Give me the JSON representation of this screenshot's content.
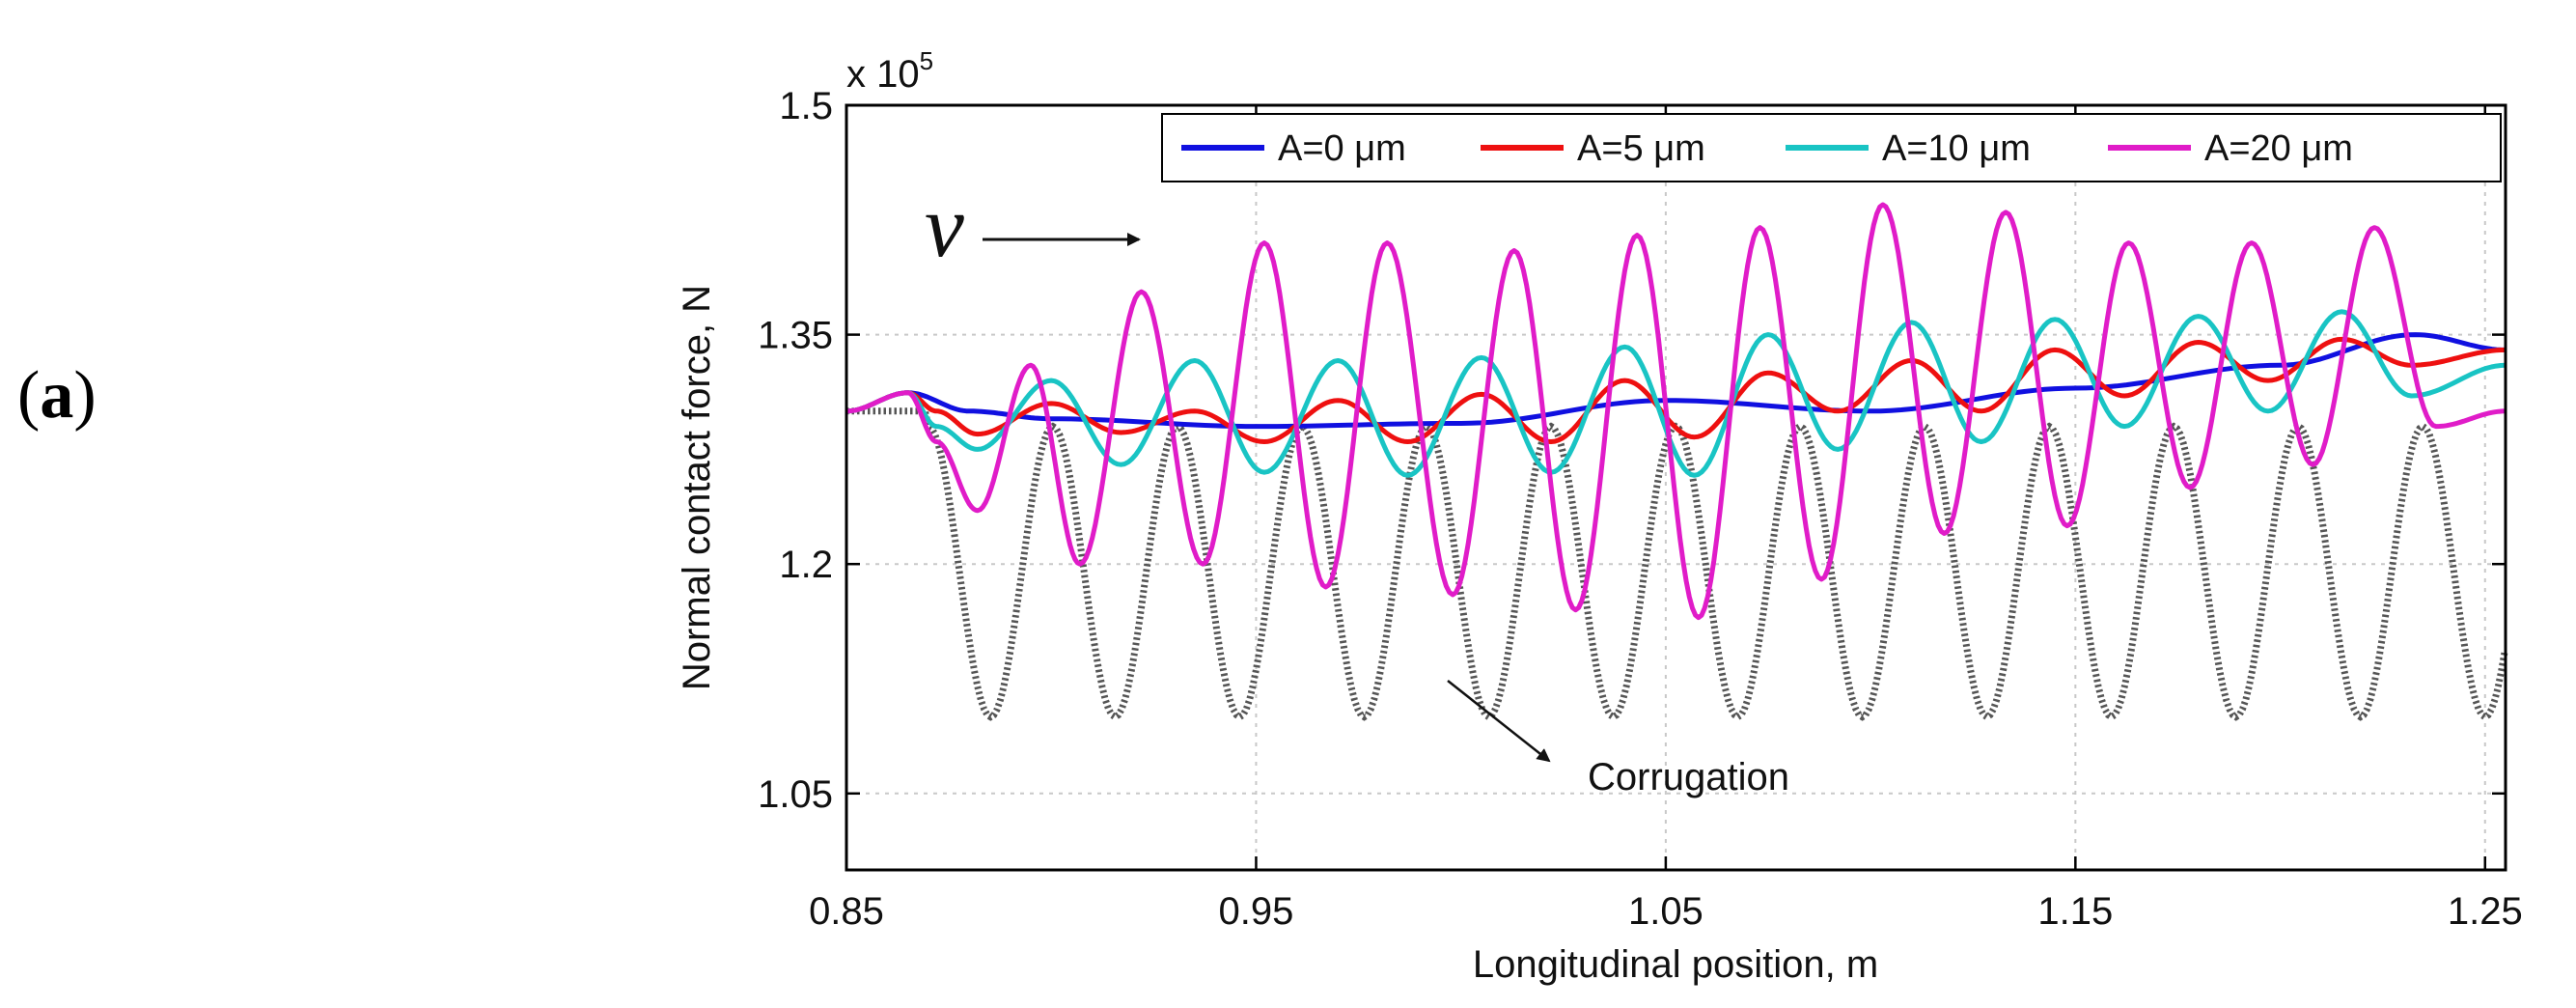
{
  "panel_label": {
    "open": "(",
    "letter": "a",
    "close": ")"
  },
  "chart_data": {
    "type": "line",
    "title": "",
    "xlabel": "Longitudinal position, m",
    "ylabel": "Normal contact force, N",
    "y_multiplier": "x 10",
    "y_exponent": "5",
    "xlim": [
      0.85,
      1.255
    ],
    "ylim": [
      1.0,
      1.5
    ],
    "xticks": [
      "0.85",
      "0.95",
      "1.05",
      "1.15",
      "1.25"
    ],
    "xtick_values": [
      0.85,
      0.95,
      1.05,
      1.15,
      1.25
    ],
    "yticks": [
      "1.05",
      "1.2",
      "1.35",
      "1.5"
    ],
    "ytick_values": [
      1.05,
      1.2,
      1.35,
      1.5
    ],
    "grid": true,
    "legend": "top-right",
    "velocity_label": "v",
    "annotation": "Corrugation",
    "series": [
      {
        "name": "A=0 μm",
        "color": "#1010e0",
        "amplitude_um": 0,
        "x": [
          0.85,
          0.865,
          0.88,
          0.9,
          0.95,
          1.0,
          1.05,
          1.1,
          1.15,
          1.2,
          1.233,
          1.255
        ],
        "values": [
          1.3,
          1.312,
          1.3,
          1.295,
          1.29,
          1.292,
          1.307,
          1.3,
          1.315,
          1.33,
          1.35,
          1.34
        ]
      },
      {
        "name": "A=5 μm",
        "color": "#ee1010",
        "amplitude_um": 5,
        "x": [
          0.85,
          0.865,
          0.872,
          0.882,
          0.9,
          0.917,
          0.935,
          0.952,
          0.97,
          0.987,
          1.005,
          1.022,
          1.04,
          1.057,
          1.075,
          1.092,
          1.11,
          1.127,
          1.145,
          1.162,
          1.18,
          1.197,
          1.215,
          1.232,
          1.255
        ],
        "values": [
          1.3,
          1.312,
          1.3,
          1.285,
          1.305,
          1.286,
          1.3,
          1.28,
          1.307,
          1.28,
          1.311,
          1.28,
          1.32,
          1.283,
          1.325,
          1.3,
          1.333,
          1.3,
          1.34,
          1.31,
          1.345,
          1.32,
          1.347,
          1.33,
          1.34
        ]
      },
      {
        "name": "A=10 μm",
        "color": "#19c4c4",
        "amplitude_um": 10,
        "x": [
          0.85,
          0.865,
          0.872,
          0.882,
          0.9,
          0.917,
          0.935,
          0.952,
          0.97,
          0.987,
          1.005,
          1.022,
          1.04,
          1.057,
          1.075,
          1.092,
          1.11,
          1.127,
          1.145,
          1.162,
          1.18,
          1.197,
          1.215,
          1.232,
          1.255
        ],
        "values": [
          1.3,
          1.312,
          1.29,
          1.275,
          1.32,
          1.265,
          1.333,
          1.26,
          1.333,
          1.258,
          1.335,
          1.26,
          1.342,
          1.258,
          1.35,
          1.275,
          1.358,
          1.28,
          1.36,
          1.29,
          1.362,
          1.3,
          1.365,
          1.31,
          1.33
        ]
      },
      {
        "name": "A=20 μm",
        "color": "#e01cc8",
        "amplitude_um": 20,
        "x": [
          0.85,
          0.865,
          0.872,
          0.882,
          0.895,
          0.907,
          0.922,
          0.937,
          0.952,
          0.967,
          0.982,
          0.998,
          1.013,
          1.028,
          1.043,
          1.058,
          1.073,
          1.088,
          1.103,
          1.118,
          1.133,
          1.148,
          1.163,
          1.178,
          1.193,
          1.208,
          1.223,
          1.238,
          1.255
        ],
        "values": [
          1.3,
          1.312,
          1.28,
          1.235,
          1.33,
          1.2,
          1.378,
          1.2,
          1.41,
          1.185,
          1.41,
          1.18,
          1.405,
          1.17,
          1.415,
          1.165,
          1.42,
          1.19,
          1.435,
          1.22,
          1.43,
          1.225,
          1.41,
          1.25,
          1.41,
          1.265,
          1.42,
          1.29,
          1.3
        ]
      }
    ],
    "corrugation": {
      "name": "Corrugation",
      "color": "#555555",
      "baseline": 1.195,
      "amplitude": 0.095,
      "start": 0.87,
      "period": 0.0304
    }
  }
}
